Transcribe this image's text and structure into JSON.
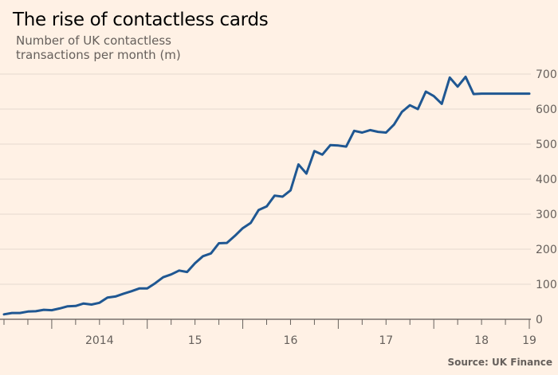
{
  "title": "The rise of contactless cards",
  "subtitle": "Number of UK contactless transactions per month (m)",
  "source": "Source: UK Finance",
  "colors": {
    "background": "#fff1e5",
    "line": "#1f5792",
    "grid": "#e6d9ce"
  },
  "chart_data": {
    "type": "line",
    "ylabel": "",
    "xlabel": "",
    "ylim": [
      0,
      700
    ],
    "yticks": [
      0,
      100,
      200,
      300,
      400,
      500,
      600,
      700
    ],
    "y_axis_position": "right",
    "grid": true,
    "x_tick_labels": [
      {
        "label": "2014",
        "year": 2014
      },
      {
        "label": "15",
        "year": 2015
      },
      {
        "label": "16",
        "year": 2016
      },
      {
        "label": "17",
        "year": 2017
      },
      {
        "label": "18",
        "year": 2018
      },
      {
        "label": "19",
        "year": 2019
      }
    ],
    "x_start": "2013-07",
    "x_end": "2019-01",
    "series": [
      {
        "x": [
          "2013-07",
          "2013-08",
          "2013-09",
          "2013-10",
          "2013-11",
          "2013-12",
          "2014-01",
          "2014-02",
          "2014-03",
          "2014-04",
          "2014-05",
          "2014-06",
          "2014-07",
          "2014-08",
          "2014-09",
          "2014-10",
          "2014-11",
          "2014-12",
          "2015-01",
          "2015-02",
          "2015-03",
          "2015-04",
          "2015-05",
          "2015-06",
          "2015-07",
          "2015-08",
          "2015-09",
          "2015-10",
          "2015-11",
          "2015-12",
          "2016-01",
          "2016-02",
          "2016-03",
          "2016-04",
          "2016-05",
          "2016-06",
          "2016-07",
          "2016-08",
          "2016-09",
          "2016-10",
          "2016-11",
          "2016-12",
          "2017-01",
          "2017-02",
          "2017-03",
          "2017-04",
          "2017-05",
          "2017-06",
          "2017-07",
          "2017-08",
          "2017-09",
          "2017-10",
          "2017-11",
          "2017-12",
          "2018-01",
          "2018-02",
          "2018-03",
          "2018-04",
          "2018-05",
          "2018-06",
          "2018-07",
          "2018-08",
          "2018-09",
          "2018-10",
          "2018-11",
          "2018-12",
          "2019-01"
        ],
        "values": [
          14,
          18,
          18,
          22,
          23,
          27,
          26,
          31,
          37,
          38,
          45,
          42,
          47,
          62,
          65,
          73,
          80,
          88,
          88,
          103,
          120,
          128,
          139,
          135,
          160,
          180,
          188,
          217,
          218,
          238,
          260,
          275,
          312,
          322,
          353,
          350,
          368,
          442,
          416,
          480,
          470,
          497,
          496,
          493,
          538,
          533,
          540,
          535,
          533,
          556,
          592,
          611,
          600,
          650,
          637,
          615,
          690,
          664,
          692,
          643,
          644,
          644,
          644,
          644,
          644,
          644,
          644
        ]
      }
    ]
  }
}
